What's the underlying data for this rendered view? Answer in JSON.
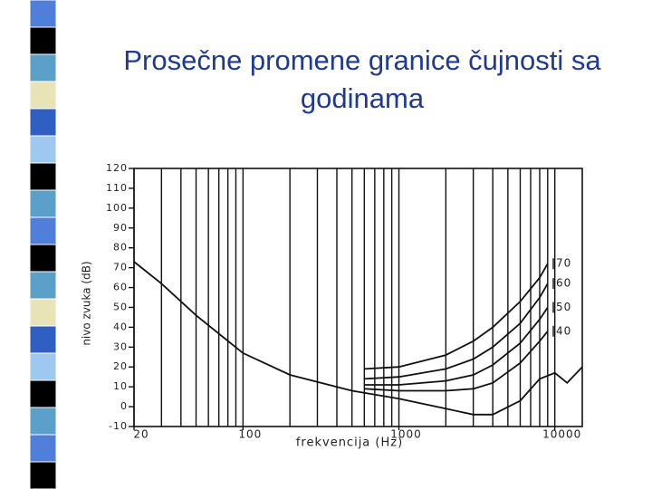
{
  "title": "Prosečne promene granice čujnosti sa godinama",
  "chart_data": {
    "type": "line",
    "x_label": "frekvencija (Hz)",
    "y_label": "nivo zvuka (dB)",
    "xscale": "log",
    "xlim": [
      20,
      15000
    ],
    "ylim": [
      -10,
      120
    ],
    "xticks": [
      20,
      100,
      1000,
      10000
    ],
    "yticks": [
      -10,
      0,
      10,
      20,
      30,
      40,
      50,
      60,
      70,
      80,
      90,
      100,
      110,
      120
    ],
    "xgrid": [
      20,
      30,
      40,
      50,
      60,
      70,
      80,
      90,
      100,
      200,
      300,
      400,
      500,
      600,
      700,
      800,
      900,
      1000,
      2000,
      3000,
      4000,
      5000,
      6000,
      7000,
      8000,
      9000,
      10000
    ],
    "series": [
      {
        "color": "#111111",
        "x": [
          20,
          30,
          50,
          100,
          200,
          500,
          1000,
          2000,
          3000,
          4000,
          6000,
          8000,
          10000,
          12000,
          15000
        ],
        "values": [
          73,
          62,
          46,
          27,
          16,
          8,
          4,
          -1,
          -4,
          -4,
          3,
          14,
          17,
          12,
          20
        ]
      },
      {
        "name": "40",
        "color": "#111111",
        "x": [
          600,
          1000,
          2000,
          3000,
          4000,
          6000,
          8000,
          9000
        ],
        "values": [
          9,
          8,
          8,
          9,
          12,
          22,
          33,
          38
        ]
      },
      {
        "name": "50",
        "color": "#111111",
        "x": [
          600,
          1000,
          2000,
          3000,
          4000,
          6000,
          8000,
          9000
        ],
        "values": [
          11,
          11,
          13,
          16,
          21,
          32,
          44,
          50
        ]
      },
      {
        "name": "60",
        "color": "#111111",
        "x": [
          600,
          1000,
          2000,
          3000,
          4000,
          6000,
          8000,
          9000
        ],
        "values": [
          14,
          15,
          19,
          24,
          30,
          42,
          55,
          62
        ]
      },
      {
        "name": "70",
        "color": "#111111",
        "x": [
          600,
          1000,
          2000,
          3000,
          4000,
          6000,
          8000,
          9000
        ],
        "values": [
          19,
          20,
          26,
          33,
          40,
          53,
          65,
          72
        ]
      }
    ]
  }
}
